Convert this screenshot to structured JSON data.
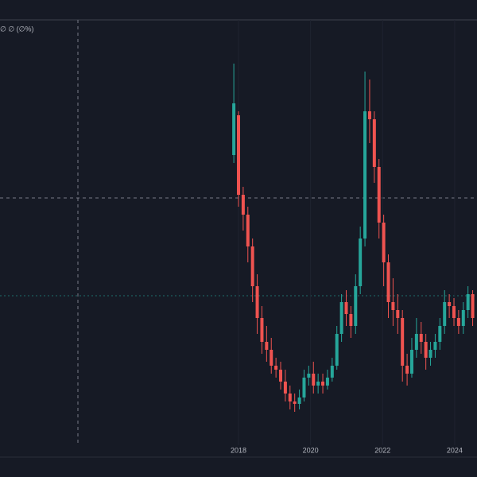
{
  "chart_data": {
    "type": "candlestick",
    "header_text": "∅ ∅ (∅%)",
    "x": [
      2017.87,
      2018.0,
      2018.13,
      2018.26,
      2018.39,
      2018.52,
      2018.65,
      2018.78,
      2018.91,
      2019.04,
      2019.17,
      2019.3,
      2019.43,
      2019.56,
      2019.69,
      2019.82,
      2019.95,
      2020.08,
      2020.21,
      2020.34,
      2020.47,
      2020.6,
      2020.73,
      2020.86,
      2020.99,
      2021.12,
      2021.25,
      2021.38,
      2021.51,
      2021.64,
      2021.77,
      2021.9,
      2022.03,
      2022.16,
      2022.29,
      2022.42,
      2022.55,
      2022.68,
      2022.81,
      2022.94,
      2023.07,
      2023.2,
      2023.33,
      2023.46,
      2023.59,
      2023.72,
      2023.85,
      2023.98,
      2024.11,
      2024.24,
      2024.37,
      2024.5
    ],
    "open": [
      365,
      415,
      315,
      290,
      250,
      200,
      160,
      130,
      120,
      100,
      95,
      80,
      65,
      55,
      52,
      60,
      85,
      90,
      75,
      80,
      75,
      85,
      100,
      140,
      180,
      165,
      150,
      200,
      260,
      420,
      410,
      350,
      280,
      230,
      180,
      170,
      160,
      100,
      90,
      120,
      140,
      130,
      110,
      120,
      130,
      150,
      180,
      175,
      160,
      150,
      170,
      190
    ],
    "high": [
      480,
      420,
      325,
      300,
      260,
      215,
      175,
      150,
      135,
      110,
      105,
      95,
      75,
      65,
      70,
      95,
      100,
      105,
      90,
      90,
      95,
      110,
      150,
      190,
      195,
      175,
      215,
      275,
      470,
      460,
      420,
      360,
      290,
      240,
      210,
      190,
      170,
      115,
      135,
      160,
      155,
      140,
      130,
      140,
      160,
      195,
      190,
      185,
      170,
      180,
      200,
      195
    ],
    "low": [
      355,
      300,
      270,
      230,
      180,
      140,
      115,
      105,
      90,
      85,
      70,
      55,
      45,
      42,
      45,
      55,
      75,
      65,
      65,
      65,
      70,
      80,
      95,
      130,
      150,
      135,
      140,
      190,
      250,
      380,
      330,
      260,
      200,
      160,
      150,
      140,
      80,
      75,
      85,
      110,
      115,
      95,
      100,
      110,
      120,
      140,
      160,
      150,
      140,
      140,
      160,
      150
    ],
    "close": [
      430,
      315,
      290,
      250,
      200,
      160,
      130,
      120,
      100,
      95,
      80,
      65,
      55,
      52,
      60,
      85,
      90,
      75,
      80,
      75,
      85,
      100,
      140,
      180,
      165,
      150,
      200,
      260,
      420,
      410,
      350,
      280,
      230,
      180,
      170,
      160,
      100,
      90,
      120,
      140,
      130,
      110,
      120,
      130,
      150,
      180,
      175,
      160,
      150,
      170,
      190,
      160
    ],
    "up_color": "#26a69a",
    "down_color": "#ef5350",
    "xlim": [
      2011.38,
      2024.62
    ],
    "xticks": [
      2018,
      2020,
      2022,
      2024
    ],
    "ylim": [
      0,
      535
    ],
    "grid": true
  }
}
